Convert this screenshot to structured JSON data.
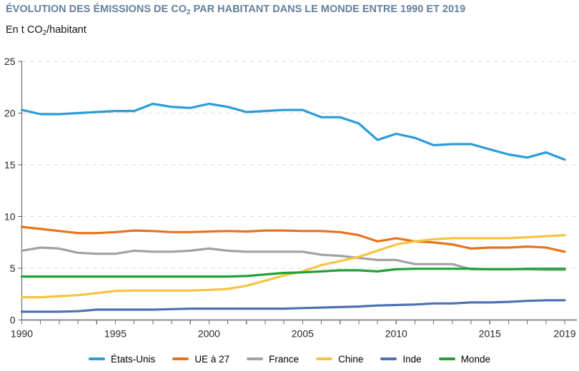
{
  "header": {
    "title_prefix": "ÉVOLUTION DES ÉMISSIONS DE CO",
    "title_sub": "2",
    "title_suffix": " PAR HABITANT DANS LE MONDE ENTRE 1990 ET 2019",
    "title_color": "#64809D",
    "unit_prefix": "En t CO",
    "unit_sub": "2",
    "unit_suffix": "/habitant"
  },
  "chart_data": {
    "type": "line",
    "title": "Évolution des émissions de CO2 par habitant dans le monde entre 1990 et 2019",
    "ylabel": "En t CO2/habitant",
    "xlabel": "",
    "x": [
      1990,
      1991,
      1992,
      1993,
      1994,
      1995,
      1996,
      1997,
      1998,
      1999,
      2000,
      2001,
      2002,
      2003,
      2004,
      2005,
      2006,
      2007,
      2008,
      2009,
      2010,
      2011,
      2012,
      2013,
      2014,
      2015,
      2016,
      2017,
      2018,
      2019
    ],
    "series": [
      {
        "name": "États-Unis",
        "color": "#2B9CD8",
        "values": [
          20.3,
          19.9,
          19.9,
          20.0,
          20.1,
          20.2,
          20.2,
          20.9,
          20.6,
          20.5,
          20.9,
          20.6,
          20.1,
          20.2,
          20.3,
          20.3,
          19.6,
          19.6,
          19.0,
          17.4,
          18.0,
          17.6,
          16.9,
          17.0,
          17.0,
          16.5,
          16.0,
          15.7,
          16.2,
          15.5
        ]
      },
      {
        "name": "UE à 27",
        "color": "#E8721C",
        "values": [
          9.0,
          8.8,
          8.6,
          8.4,
          8.4,
          8.5,
          8.65,
          8.6,
          8.5,
          8.5,
          8.55,
          8.6,
          8.55,
          8.65,
          8.65,
          8.6,
          8.6,
          8.5,
          8.2,
          7.6,
          7.9,
          7.6,
          7.5,
          7.3,
          6.9,
          7.0,
          7.0,
          7.1,
          7.0,
          6.6
        ]
      },
      {
        "name": "France",
        "color": "#A2A2A2",
        "values": [
          6.7,
          7.0,
          6.9,
          6.5,
          6.4,
          6.4,
          6.7,
          6.6,
          6.6,
          6.7,
          6.9,
          6.7,
          6.6,
          6.6,
          6.6,
          6.6,
          6.3,
          6.2,
          6.0,
          5.8,
          5.8,
          5.4,
          5.4,
          5.4,
          4.9,
          4.9,
          4.9,
          4.9,
          4.85,
          4.85
        ]
      },
      {
        "name": "Chine",
        "color": "#F6C440",
        "values": [
          2.2,
          2.2,
          2.3,
          2.4,
          2.6,
          2.8,
          2.85,
          2.85,
          2.85,
          2.85,
          2.9,
          3.0,
          3.3,
          3.8,
          4.3,
          4.7,
          5.3,
          5.7,
          6.1,
          6.7,
          7.3,
          7.6,
          7.8,
          7.9,
          7.9,
          7.9,
          7.9,
          8.0,
          8.1,
          8.2
        ]
      },
      {
        "name": "Inde",
        "color": "#4E71B4",
        "values": [
          0.8,
          0.8,
          0.8,
          0.85,
          1.0,
          1.0,
          1.0,
          1.0,
          1.05,
          1.1,
          1.1,
          1.1,
          1.1,
          1.1,
          1.1,
          1.15,
          1.2,
          1.25,
          1.3,
          1.4,
          1.45,
          1.5,
          1.6,
          1.6,
          1.7,
          1.7,
          1.75,
          1.85,
          1.9,
          1.9
        ]
      },
      {
        "name": "Monde",
        "color": "#1FA233",
        "values": [
          4.2,
          4.2,
          4.2,
          4.2,
          4.2,
          4.2,
          4.2,
          4.2,
          4.2,
          4.2,
          4.2,
          4.2,
          4.25,
          4.4,
          4.55,
          4.6,
          4.7,
          4.8,
          4.8,
          4.7,
          4.9,
          4.95,
          4.95,
          4.95,
          4.95,
          4.9,
          4.9,
          4.95,
          4.95,
          4.95
        ]
      }
    ],
    "ylim": [
      0,
      25
    ],
    "yticks": [
      0,
      5,
      10,
      15,
      20,
      25
    ],
    "xticks": [
      1990,
      1995,
      2000,
      2005,
      2010,
      2015,
      2019
    ],
    "grid": "horizontal-dashed",
    "legend_position": "bottom",
    "axis_color": "#595959",
    "grid_color": "#D9D9D9",
    "tick_label_color": "#262626"
  }
}
